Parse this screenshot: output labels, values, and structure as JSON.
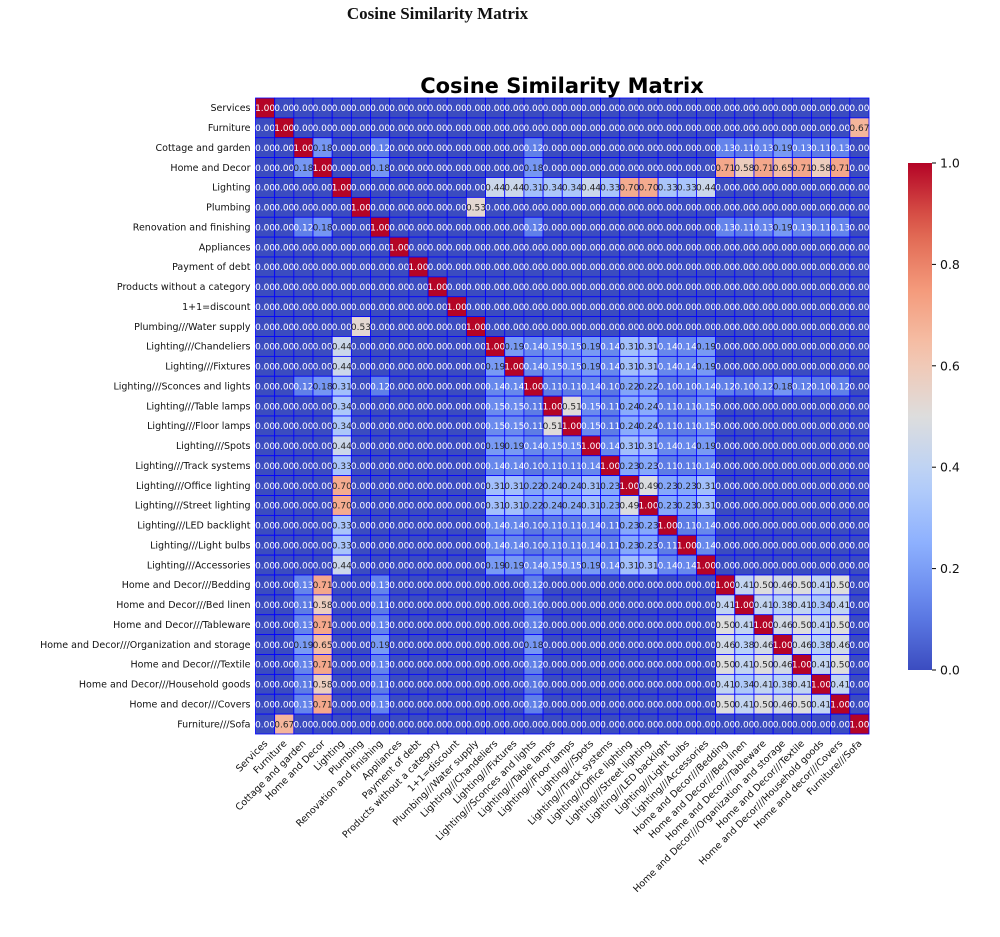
{
  "page_title": "Cosine Similarity Matrix",
  "chart_data": {
    "type": "heatmap",
    "title": "Cosine Similarity Matrix",
    "colormap": "coolwarm",
    "gridline_color": "#0000ff",
    "value_range": [
      0,
      1
    ],
    "annotation_format": "0.00",
    "colorbar": {
      "ticks": [
        "0.0",
        "0.2",
        "0.4",
        "0.6",
        "0.8",
        "1.0"
      ],
      "placement": "right"
    },
    "labels": [
      "Services",
      "Furniture",
      "Cottage and garden",
      "Home and Decor",
      "Lighting",
      "Plumbing",
      "Renovation and finishing",
      "Appliances",
      "Payment of debt",
      "Products without a category",
      "1+1=discount",
      "Plumbing///Water supply",
      "Lighting///Chandeliers",
      "Lighting///Fixtures",
      "Lighting///Sconces and lights",
      "Lighting///Table lamps",
      "Lighting///Floor lamps",
      "Lighting///Spots",
      "Lighting///Track systems",
      "Lighting///Office lighting",
      "Lighting///Street lighting",
      "Lighting///LED backlight",
      "Lighting///Light bulbs",
      "Lighting///Accessories",
      "Home and Decor///Bedding",
      "Home and Decor///Bed linen",
      "Home and Decor///Tableware",
      "Home and Decor///Organization and storage",
      "Home and Decor///Textile",
      "Home and Decor///Household goods",
      "Home and decor///Covers",
      "Furniture///Sofa"
    ],
    "matrix": [
      [
        1,
        0,
        0,
        0,
        0,
        0,
        0,
        0,
        0,
        0,
        0,
        0,
        0,
        0,
        0,
        0,
        0,
        0,
        0,
        0,
        0,
        0,
        0,
        0,
        0,
        0,
        0,
        0,
        0,
        0,
        0,
        0
      ],
      [
        0,
        1,
        0,
        0,
        0,
        0,
        0,
        0,
        0,
        0,
        0,
        0,
        0,
        0,
        0,
        0,
        0,
        0,
        0,
        0,
        0,
        0,
        0,
        0,
        0,
        0,
        0,
        0,
        0,
        0,
        0,
        0.67
      ],
      [
        0,
        0,
        1,
        0.18,
        0,
        0,
        0.12,
        0,
        0,
        0,
        0,
        0,
        0,
        0,
        0.12,
        0,
        0,
        0,
        0,
        0,
        0,
        0,
        0,
        0,
        0.13,
        0.11,
        0.13,
        0.19,
        0.13,
        0.11,
        0.13,
        0
      ],
      [
        0,
        0,
        0.18,
        1,
        0,
        0,
        0.18,
        0,
        0,
        0,
        0,
        0,
        0,
        0,
        0.18,
        0,
        0,
        0,
        0,
        0,
        0,
        0,
        0,
        0,
        0.71,
        0.58,
        0.71,
        0.65,
        0.71,
        0.58,
        0.71,
        0
      ],
      [
        0,
        0,
        0,
        0,
        1,
        0,
        0,
        0,
        0,
        0,
        0,
        0,
        0.44,
        0.44,
        0.31,
        0.34,
        0.34,
        0.44,
        0.33,
        0.7,
        0.7,
        0.33,
        0.33,
        0.44,
        0,
        0,
        0,
        0,
        0,
        0,
        0,
        0
      ],
      [
        0,
        0,
        0,
        0,
        0,
        1,
        0,
        0,
        0,
        0,
        0,
        0.53,
        0,
        0,
        0,
        0,
        0,
        0,
        0,
        0,
        0,
        0,
        0,
        0,
        0,
        0,
        0,
        0,
        0,
        0,
        0,
        0
      ],
      [
        0,
        0,
        0.12,
        0.18,
        0,
        0,
        1,
        0,
        0,
        0,
        0,
        0,
        0,
        0,
        0.12,
        0,
        0,
        0,
        0,
        0,
        0,
        0,
        0,
        0,
        0.13,
        0.11,
        0.13,
        0.19,
        0.13,
        0.11,
        0.13,
        0
      ],
      [
        0,
        0,
        0,
        0,
        0,
        0,
        0,
        1,
        0,
        0,
        0,
        0,
        0,
        0,
        0,
        0,
        0,
        0,
        0,
        0,
        0,
        0,
        0,
        0,
        0,
        0,
        0,
        0,
        0,
        0,
        0,
        0
      ],
      [
        0,
        0,
        0,
        0,
        0,
        0,
        0,
        0,
        1,
        0,
        0,
        0,
        0,
        0,
        0,
        0,
        0,
        0,
        0,
        0,
        0,
        0,
        0,
        0,
        0,
        0,
        0,
        0,
        0,
        0,
        0,
        0
      ],
      [
        0,
        0,
        0,
        0,
        0,
        0,
        0,
        0,
        0,
        1,
        0,
        0,
        0,
        0,
        0,
        0,
        0,
        0,
        0,
        0,
        0,
        0,
        0,
        0,
        0,
        0,
        0,
        0,
        0,
        0,
        0,
        0
      ],
      [
        0,
        0,
        0,
        0,
        0,
        0,
        0,
        0,
        0,
        0,
        1,
        0,
        0,
        0,
        0,
        0,
        0,
        0,
        0,
        0,
        0,
        0,
        0,
        0,
        0,
        0,
        0,
        0,
        0,
        0,
        0,
        0
      ],
      [
        0,
        0,
        0,
        0,
        0,
        0.53,
        0,
        0,
        0,
        0,
        0,
        1,
        0,
        0,
        0,
        0,
        0,
        0,
        0,
        0,
        0,
        0,
        0,
        0,
        0,
        0,
        0,
        0,
        0,
        0,
        0,
        0
      ],
      [
        0,
        0,
        0,
        0,
        0.44,
        0,
        0,
        0,
        0,
        0,
        0,
        0,
        1,
        0.19,
        0.14,
        0.15,
        0.15,
        0.19,
        0.14,
        0.31,
        0.31,
        0.14,
        0.14,
        0.19,
        0,
        0,
        0,
        0,
        0,
        0,
        0,
        0
      ],
      [
        0,
        0,
        0,
        0,
        0.44,
        0,
        0,
        0,
        0,
        0,
        0,
        0,
        0.19,
        1,
        0.14,
        0.15,
        0.15,
        0.19,
        0.14,
        0.31,
        0.31,
        0.14,
        0.14,
        0.19,
        0,
        0,
        0,
        0,
        0,
        0,
        0,
        0
      ],
      [
        0,
        0,
        0.12,
        0.18,
        0.31,
        0,
        0.12,
        0,
        0,
        0,
        0,
        0,
        0.14,
        0.14,
        1,
        0.11,
        0.11,
        0.14,
        0.1,
        0.22,
        0.22,
        0.1,
        0.1,
        0.14,
        0.12,
        0.1,
        0.12,
        0.18,
        0.12,
        0.1,
        0.12,
        0
      ],
      [
        0,
        0,
        0,
        0,
        0.34,
        0,
        0,
        0,
        0,
        0,
        0,
        0,
        0.15,
        0.15,
        0.11,
        1,
        0.51,
        0.15,
        0.11,
        0.24,
        0.24,
        0.11,
        0.11,
        0.15,
        0,
        0,
        0,
        0,
        0,
        0,
        0,
        0
      ],
      [
        0,
        0,
        0,
        0,
        0.34,
        0,
        0,
        0,
        0,
        0,
        0,
        0,
        0.15,
        0.15,
        0.11,
        0.51,
        1,
        0.15,
        0.11,
        0.24,
        0.24,
        0.11,
        0.11,
        0.15,
        0,
        0,
        0,
        0,
        0,
        0,
        0,
        0
      ],
      [
        0,
        0,
        0,
        0,
        0.44,
        0,
        0,
        0,
        0,
        0,
        0,
        0,
        0.19,
        0.19,
        0.14,
        0.15,
        0.15,
        1,
        0.14,
        0.31,
        0.31,
        0.14,
        0.14,
        0.19,
        0,
        0,
        0,
        0,
        0,
        0,
        0,
        0
      ],
      [
        0,
        0,
        0,
        0,
        0.33,
        0,
        0,
        0,
        0,
        0,
        0,
        0,
        0.14,
        0.14,
        0.1,
        0.11,
        0.11,
        0.14,
        1,
        0.23,
        0.23,
        0.11,
        0.11,
        0.14,
        0,
        0,
        0,
        0,
        0,
        0,
        0,
        0
      ],
      [
        0,
        0,
        0,
        0,
        0.7,
        0,
        0,
        0,
        0,
        0,
        0,
        0,
        0.31,
        0.31,
        0.22,
        0.24,
        0.24,
        0.31,
        0.23,
        1,
        0.49,
        0.23,
        0.23,
        0.31,
        0,
        0,
        0,
        0,
        0,
        0,
        0,
        0
      ],
      [
        0,
        0,
        0,
        0,
        0.7,
        0,
        0,
        0,
        0,
        0,
        0,
        0,
        0.31,
        0.31,
        0.22,
        0.24,
        0.24,
        0.31,
        0.23,
        0.49,
        1,
        0.23,
        0.23,
        0.31,
        0,
        0,
        0,
        0,
        0,
        0,
        0,
        0
      ],
      [
        0,
        0,
        0,
        0,
        0.33,
        0,
        0,
        0,
        0,
        0,
        0,
        0,
        0.14,
        0.14,
        0.1,
        0.11,
        0.11,
        0.14,
        0.11,
        0.23,
        0.23,
        1,
        0.11,
        0.14,
        0,
        0,
        0,
        0,
        0,
        0,
        0,
        0
      ],
      [
        0,
        0,
        0,
        0,
        0.33,
        0,
        0,
        0,
        0,
        0,
        0,
        0,
        0.14,
        0.14,
        0.1,
        0.11,
        0.11,
        0.14,
        0.11,
        0.23,
        0.23,
        0.11,
        1,
        0.14,
        0,
        0,
        0,
        0,
        0,
        0,
        0,
        0
      ],
      [
        0,
        0,
        0,
        0,
        0.44,
        0,
        0,
        0,
        0,
        0,
        0,
        0,
        0.19,
        0.19,
        0.14,
        0.15,
        0.15,
        0.19,
        0.14,
        0.31,
        0.31,
        0.14,
        0.14,
        1,
        0,
        0,
        0,
        0,
        0,
        0,
        0,
        0
      ],
      [
        0,
        0,
        0.13,
        0.71,
        0,
        0,
        0.13,
        0,
        0,
        0,
        0,
        0,
        0,
        0,
        0.12,
        0,
        0,
        0,
        0,
        0,
        0,
        0,
        0,
        0,
        1,
        0.41,
        0.5,
        0.46,
        0.5,
        0.41,
        0.5,
        0
      ],
      [
        0,
        0,
        0.11,
        0.58,
        0,
        0,
        0.11,
        0,
        0,
        0,
        0,
        0,
        0,
        0,
        0.1,
        0,
        0,
        0,
        0,
        0,
        0,
        0,
        0,
        0,
        0.41,
        1,
        0.41,
        0.38,
        0.41,
        0.34,
        0.41,
        0
      ],
      [
        0,
        0,
        0.13,
        0.71,
        0,
        0,
        0.13,
        0,
        0,
        0,
        0,
        0,
        0,
        0,
        0.12,
        0,
        0,
        0,
        0,
        0,
        0,
        0,
        0,
        0,
        0.5,
        0.41,
        1,
        0.46,
        0.5,
        0.41,
        0.5,
        0
      ],
      [
        0,
        0,
        0.19,
        0.65,
        0,
        0,
        0.19,
        0,
        0,
        0,
        0,
        0,
        0,
        0,
        0.18,
        0,
        0,
        0,
        0,
        0,
        0,
        0,
        0,
        0,
        0.46,
        0.38,
        0.46,
        1,
        0.46,
        0.38,
        0.46,
        0
      ],
      [
        0,
        0,
        0.13,
        0.71,
        0,
        0,
        0.13,
        0,
        0,
        0,
        0,
        0,
        0,
        0,
        0.12,
        0,
        0,
        0,
        0,
        0,
        0,
        0,
        0,
        0,
        0.5,
        0.41,
        0.5,
        0.46,
        1,
        0.41,
        0.5,
        0
      ],
      [
        0,
        0,
        0.11,
        0.58,
        0,
        0,
        0.11,
        0,
        0,
        0,
        0,
        0,
        0,
        0,
        0.1,
        0,
        0,
        0,
        0,
        0,
        0,
        0,
        0,
        0,
        0.41,
        0.34,
        0.41,
        0.38,
        0.41,
        1,
        0.41,
        0
      ],
      [
        0,
        0,
        0.13,
        0.71,
        0,
        0,
        0.13,
        0,
        0,
        0,
        0,
        0,
        0,
        0,
        0.12,
        0,
        0,
        0,
        0,
        0,
        0,
        0,
        0,
        0,
        0.5,
        0.41,
        0.5,
        0.46,
        0.5,
        0.41,
        1,
        0
      ],
      [
        0,
        0.67,
        0,
        0,
        0,
        0,
        0,
        0,
        0,
        0,
        0,
        0,
        0,
        0,
        0,
        0,
        0,
        0,
        0,
        0,
        0,
        0,
        0,
        0,
        0,
        0,
        0,
        0,
        0,
        0,
        0,
        1
      ]
    ]
  }
}
